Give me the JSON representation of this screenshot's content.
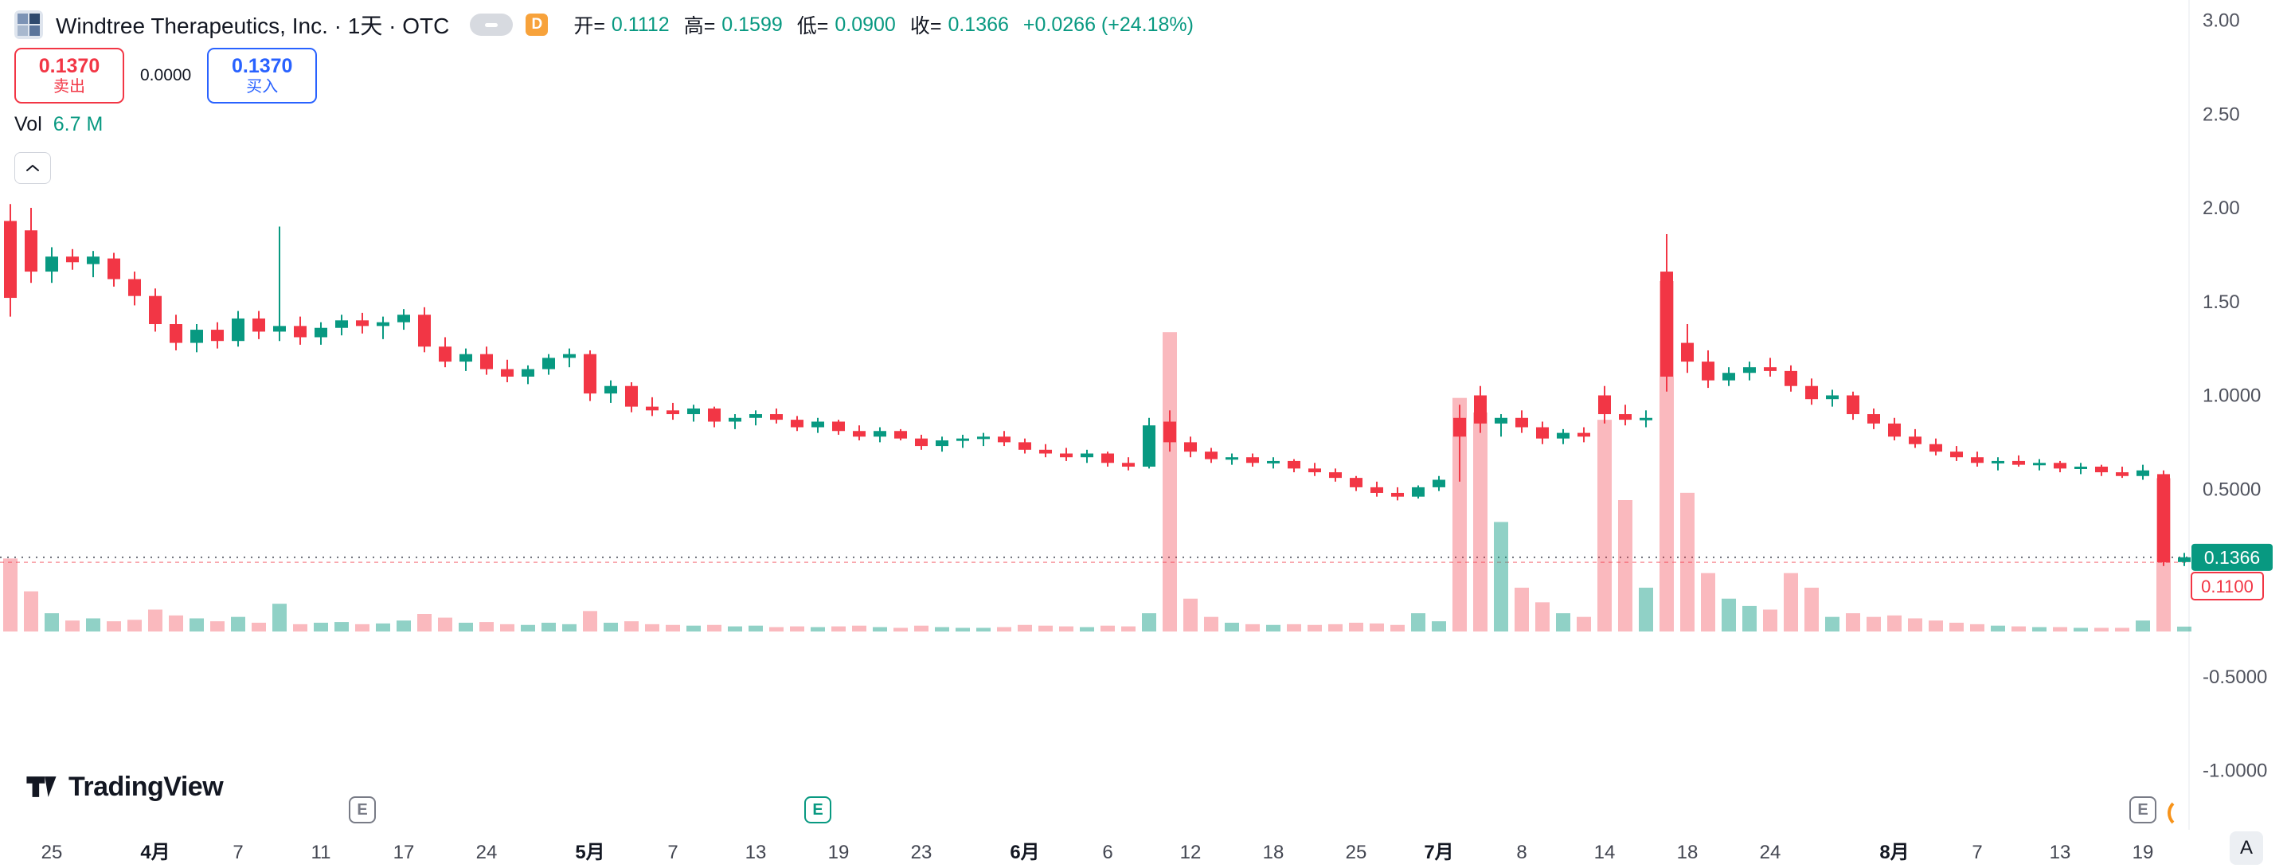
{
  "header": {
    "symbol_title": "Windtree Therapeutics, Inc. · 1天 · OTC",
    "interval_badge": "D",
    "ohlc": {
      "open_label": "开=",
      "open": "0.1112",
      "high_label": "高=",
      "high": "0.1599",
      "low_label": "低=",
      "low": "0.0900",
      "close_label": "收=",
      "close": "0.1366",
      "change": "+0.0266 (+24.18%)"
    }
  },
  "trade_panel": {
    "sell_price": "0.1370",
    "sell_label": "卖出",
    "spread": "0.0000",
    "buy_price": "0.1370",
    "buy_label": "买入"
  },
  "volume_indicator": {
    "label": "Vol",
    "value": "6.7 M"
  },
  "watermark": {
    "brand": "TradingView"
  },
  "corner_button": "A",
  "markers": {
    "earnings_letter": "E",
    "earnings": [
      {
        "i": 17,
        "variant": "gray"
      },
      {
        "i": 39,
        "variant": "green"
      },
      {
        "i": 103,
        "variant": "gray"
      }
    ]
  },
  "colors": {
    "up": "#089981",
    "down": "#F23645",
    "vol_up": "rgba(8,153,129,0.45)",
    "vol_down": "rgba(242,54,69,0.35)",
    "buy_blue": "#2962FF",
    "axis_text": "#50535E"
  },
  "chart_data": {
    "type": "candlestick",
    "title": "Windtree Therapeutics, Inc.",
    "interval": "1天",
    "exchange": "OTC",
    "ylim": [
      -1.0,
      3.0
    ],
    "last_close": 0.1366,
    "last_close_label": "0.1366",
    "prev_close": 0.11,
    "prev_close_label": "0.1100",
    "y_ticks": [
      {
        "v": 3.0,
        "t": "3.00"
      },
      {
        "v": 2.5,
        "t": "2.50"
      },
      {
        "v": 2.0,
        "t": "2.00"
      },
      {
        "v": 1.5,
        "t": "1.50"
      },
      {
        "v": 1.0,
        "t": "1.0000"
      },
      {
        "v": 0.5,
        "t": "0.5000"
      },
      {
        "v": 0.0,
        "t": "0.0000"
      },
      {
        "v": -0.5,
        "t": "-0.5000"
      },
      {
        "v": -1.0,
        "t": "-1.0000"
      }
    ],
    "time_axis": [
      {
        "i": 2,
        "t": "25"
      },
      {
        "i": 7,
        "t": "4月",
        "bold": true
      },
      {
        "i": 11,
        "t": "7"
      },
      {
        "i": 15,
        "t": "11"
      },
      {
        "i": 19,
        "t": "17"
      },
      {
        "i": 23,
        "t": "24"
      },
      {
        "i": 28,
        "t": "5月",
        "bold": true
      },
      {
        "i": 32,
        "t": "7"
      },
      {
        "i": 36,
        "t": "13"
      },
      {
        "i": 40,
        "t": "19"
      },
      {
        "i": 44,
        "t": "23"
      },
      {
        "i": 49,
        "t": "6月",
        "bold": true
      },
      {
        "i": 53,
        "t": "6"
      },
      {
        "i": 57,
        "t": "12"
      },
      {
        "i": 61,
        "t": "18"
      },
      {
        "i": 65,
        "t": "25"
      },
      {
        "i": 69,
        "t": "7月",
        "bold": true
      },
      {
        "i": 73,
        "t": "8"
      },
      {
        "i": 77,
        "t": "14"
      },
      {
        "i": 81,
        "t": "18"
      },
      {
        "i": 85,
        "t": "24"
      },
      {
        "i": 91,
        "t": "8月",
        "bold": true
      },
      {
        "i": 95,
        "t": "7"
      },
      {
        "i": 99,
        "t": "13"
      },
      {
        "i": 103,
        "t": "19"
      }
    ],
    "ohlcv": [
      [
        1.93,
        2.02,
        1.42,
        1.52,
        100
      ],
      [
        1.88,
        2.0,
        1.6,
        1.66,
        55
      ],
      [
        1.66,
        1.79,
        1.6,
        1.74,
        25
      ],
      [
        1.74,
        1.78,
        1.67,
        1.71,
        15
      ],
      [
        1.7,
        1.77,
        1.63,
        1.74,
        18
      ],
      [
        1.73,
        1.76,
        1.58,
        1.62,
        14
      ],
      [
        1.62,
        1.66,
        1.48,
        1.53,
        16
      ],
      [
        1.53,
        1.57,
        1.34,
        1.38,
        30
      ],
      [
        1.38,
        1.43,
        1.24,
        1.28,
        22
      ],
      [
        1.28,
        1.38,
        1.23,
        1.35,
        18
      ],
      [
        1.35,
        1.39,
        1.25,
        1.29,
        14
      ],
      [
        1.29,
        1.45,
        1.26,
        1.41,
        20
      ],
      [
        1.41,
        1.45,
        1.3,
        1.34,
        12
      ],
      [
        1.34,
        1.9,
        1.29,
        1.37,
        38
      ],
      [
        1.37,
        1.42,
        1.27,
        1.31,
        10
      ],
      [
        1.31,
        1.39,
        1.27,
        1.36,
        12
      ],
      [
        1.36,
        1.43,
        1.32,
        1.4,
        13
      ],
      [
        1.4,
        1.44,
        1.33,
        1.37,
        10
      ],
      [
        1.37,
        1.42,
        1.3,
        1.39,
        11
      ],
      [
        1.39,
        1.46,
        1.35,
        1.43,
        15
      ],
      [
        1.43,
        1.47,
        1.23,
        1.26,
        24
      ],
      [
        1.26,
        1.31,
        1.15,
        1.18,
        19
      ],
      [
        1.18,
        1.25,
        1.13,
        1.22,
        12
      ],
      [
        1.22,
        1.26,
        1.11,
        1.14,
        13
      ],
      [
        1.14,
        1.19,
        1.07,
        1.1,
        10
      ],
      [
        1.1,
        1.16,
        1.06,
        1.14,
        9
      ],
      [
        1.14,
        1.22,
        1.11,
        1.2,
        12
      ],
      [
        1.2,
        1.25,
        1.15,
        1.22,
        10
      ],
      [
        1.22,
        1.24,
        0.97,
        1.01,
        28
      ],
      [
        1.01,
        1.08,
        0.96,
        1.05,
        12
      ],
      [
        1.05,
        1.07,
        0.91,
        0.94,
        14
      ],
      [
        0.94,
        0.99,
        0.89,
        0.92,
        10
      ],
      [
        0.92,
        0.96,
        0.87,
        0.9,
        9
      ],
      [
        0.9,
        0.95,
        0.86,
        0.93,
        8
      ],
      [
        0.93,
        0.94,
        0.83,
        0.86,
        9
      ],
      [
        0.86,
        0.9,
        0.82,
        0.88,
        7
      ],
      [
        0.88,
        0.92,
        0.84,
        0.9,
        8
      ],
      [
        0.9,
        0.93,
        0.85,
        0.87,
        6
      ],
      [
        0.87,
        0.89,
        0.81,
        0.83,
        7
      ],
      [
        0.83,
        0.88,
        0.8,
        0.86,
        6
      ],
      [
        0.86,
        0.87,
        0.79,
        0.81,
        7
      ],
      [
        0.81,
        0.84,
        0.76,
        0.78,
        8
      ],
      [
        0.78,
        0.83,
        0.75,
        0.81,
        6
      ],
      [
        0.81,
        0.82,
        0.76,
        0.77,
        5
      ],
      [
        0.77,
        0.79,
        0.71,
        0.73,
        8
      ],
      [
        0.73,
        0.78,
        0.7,
        0.76,
        6
      ],
      [
        0.76,
        0.79,
        0.72,
        0.77,
        5
      ],
      [
        0.77,
        0.8,
        0.73,
        0.78,
        5
      ],
      [
        0.78,
        0.81,
        0.73,
        0.75,
        6
      ],
      [
        0.75,
        0.77,
        0.69,
        0.71,
        9
      ],
      [
        0.71,
        0.74,
        0.67,
        0.69,
        8
      ],
      [
        0.69,
        0.72,
        0.65,
        0.67,
        7
      ],
      [
        0.67,
        0.71,
        0.64,
        0.69,
        6
      ],
      [
        0.69,
        0.7,
        0.62,
        0.64,
        8
      ],
      [
        0.64,
        0.67,
        0.6,
        0.62,
        7
      ],
      [
        0.62,
        0.88,
        0.61,
        0.84,
        25
      ],
      [
        0.86,
        0.92,
        0.7,
        0.75,
        410
      ],
      [
        0.75,
        0.78,
        0.67,
        0.7,
        45
      ],
      [
        0.7,
        0.72,
        0.64,
        0.66,
        20
      ],
      [
        0.66,
        0.69,
        0.63,
        0.67,
        12
      ],
      [
        0.67,
        0.69,
        0.62,
        0.64,
        10
      ],
      [
        0.64,
        0.67,
        0.61,
        0.65,
        9
      ],
      [
        0.65,
        0.66,
        0.59,
        0.61,
        10
      ],
      [
        0.61,
        0.64,
        0.57,
        0.59,
        9
      ],
      [
        0.59,
        0.61,
        0.54,
        0.56,
        10
      ],
      [
        0.56,
        0.57,
        0.49,
        0.51,
        12
      ],
      [
        0.51,
        0.54,
        0.46,
        0.48,
        11
      ],
      [
        0.48,
        0.51,
        0.44,
        0.46,
        9
      ],
      [
        0.46,
        0.52,
        0.45,
        0.51,
        25
      ],
      [
        0.51,
        0.57,
        0.49,
        0.55,
        14
      ],
      [
        0.88,
        0.95,
        0.54,
        0.78,
        320
      ],
      [
        1.0,
        1.05,
        0.8,
        0.85,
        300
      ],
      [
        0.85,
        0.9,
        0.78,
        0.88,
        150
      ],
      [
        0.88,
        0.92,
        0.8,
        0.83,
        60
      ],
      [
        0.83,
        0.86,
        0.74,
        0.77,
        40
      ],
      [
        0.77,
        0.82,
        0.74,
        0.8,
        25
      ],
      [
        0.8,
        0.83,
        0.75,
        0.78,
        20
      ],
      [
        1.0,
        1.05,
        0.85,
        0.9,
        290
      ],
      [
        0.9,
        0.95,
        0.84,
        0.87,
        180
      ],
      [
        0.87,
        0.92,
        0.83,
        0.88,
        60
      ],
      [
        1.66,
        1.86,
        1.02,
        1.1,
        480
      ],
      [
        1.28,
        1.38,
        1.12,
        1.18,
        190
      ],
      [
        1.18,
        1.24,
        1.04,
        1.08,
        80
      ],
      [
        1.08,
        1.15,
        1.05,
        1.12,
        45
      ],
      [
        1.12,
        1.18,
        1.08,
        1.15,
        35
      ],
      [
        1.15,
        1.2,
        1.1,
        1.13,
        30
      ],
      [
        1.13,
        1.16,
        1.02,
        1.05,
        80
      ],
      [
        1.05,
        1.09,
        0.95,
        0.98,
        60
      ],
      [
        0.98,
        1.03,
        0.94,
        1.0,
        20
      ],
      [
        1.0,
        1.02,
        0.87,
        0.9,
        25
      ],
      [
        0.9,
        0.93,
        0.82,
        0.85,
        20
      ],
      [
        0.85,
        0.88,
        0.76,
        0.78,
        22
      ],
      [
        0.78,
        0.82,
        0.72,
        0.74,
        18
      ],
      [
        0.74,
        0.77,
        0.68,
        0.7,
        15
      ],
      [
        0.7,
        0.73,
        0.65,
        0.67,
        12
      ],
      [
        0.67,
        0.7,
        0.62,
        0.64,
        10
      ],
      [
        0.64,
        0.67,
        0.6,
        0.65,
        8
      ],
      [
        0.65,
        0.68,
        0.62,
        0.63,
        7
      ],
      [
        0.63,
        0.66,
        0.6,
        0.64,
        6
      ],
      [
        0.64,
        0.65,
        0.59,
        0.61,
        6
      ],
      [
        0.61,
        0.64,
        0.58,
        0.62,
        5
      ],
      [
        0.62,
        0.63,
        0.57,
        0.59,
        5
      ],
      [
        0.59,
        0.62,
        0.56,
        0.57,
        5
      ],
      [
        0.57,
        0.63,
        0.55,
        0.6,
        15
      ],
      [
        0.58,
        0.6,
        0.09,
        0.11,
        210
      ],
      [
        0.1112,
        0.1599,
        0.09,
        0.1366,
        6.7
      ]
    ]
  }
}
